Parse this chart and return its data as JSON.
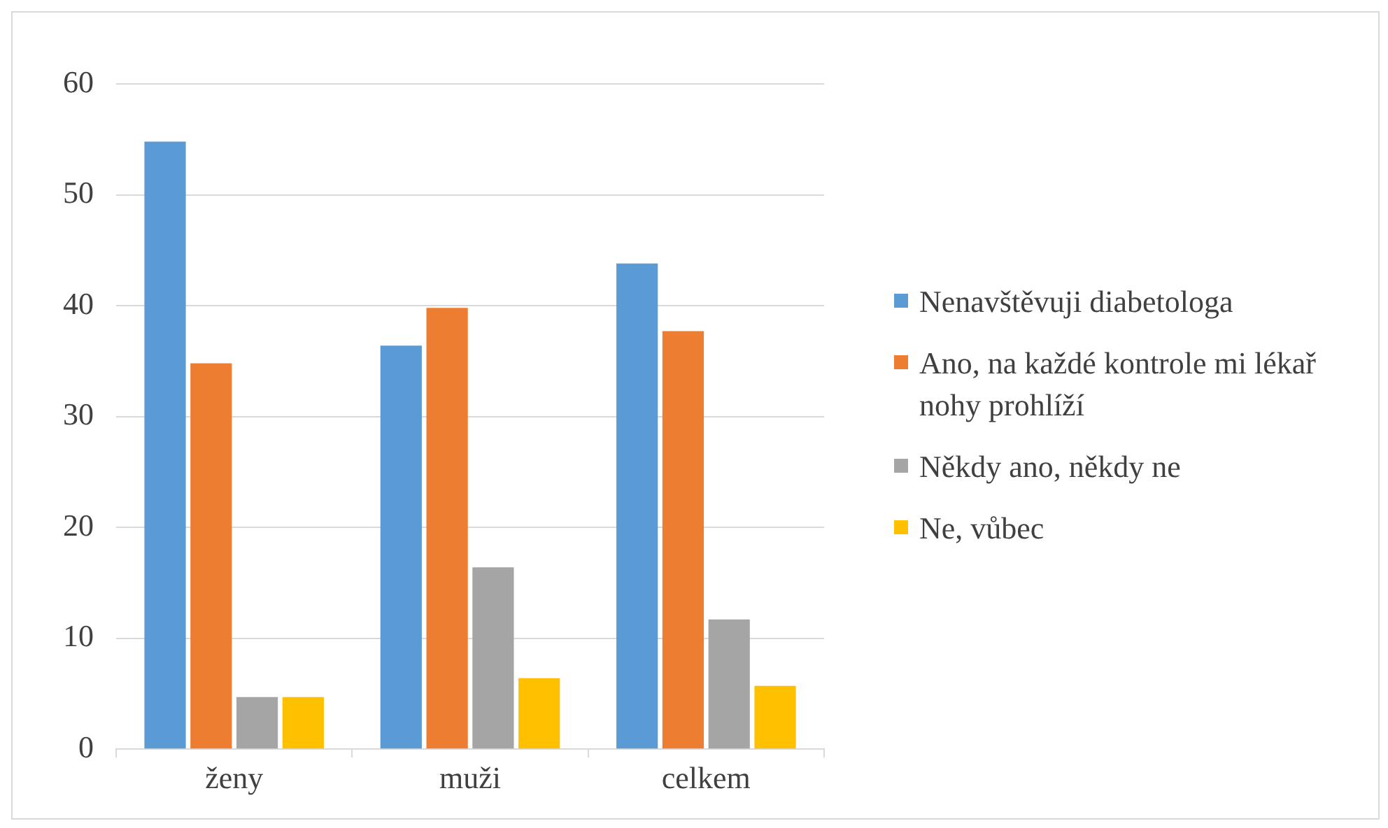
{
  "chart_data": {
    "type": "bar",
    "categories": [
      "ženy",
      "muži",
      "celkem"
    ],
    "series": [
      {
        "name": "Nenavštěvuji diabetologa",
        "color": "#5b9bd5",
        "values": [
          54.8,
          36.4,
          43.8
        ]
      },
      {
        "name": "Ano, na každé kontrole mi lékař nohy prohlíží",
        "color": "#ed7d31",
        "values": [
          34.8,
          39.8,
          37.7
        ]
      },
      {
        "name": "Někdy ano, někdy ne",
        "color": "#a5a5a5",
        "values": [
          4.7,
          16.4,
          11.7
        ]
      },
      {
        "name": "Ne, vůbec",
        "color": "#ffc000",
        "values": [
          4.7,
          6.4,
          5.7
        ]
      }
    ],
    "ylim": [
      0,
      60
    ],
    "yticks": [
      0,
      10,
      20,
      30,
      40,
      50,
      60
    ],
    "grid": "y",
    "legend": "right"
  }
}
